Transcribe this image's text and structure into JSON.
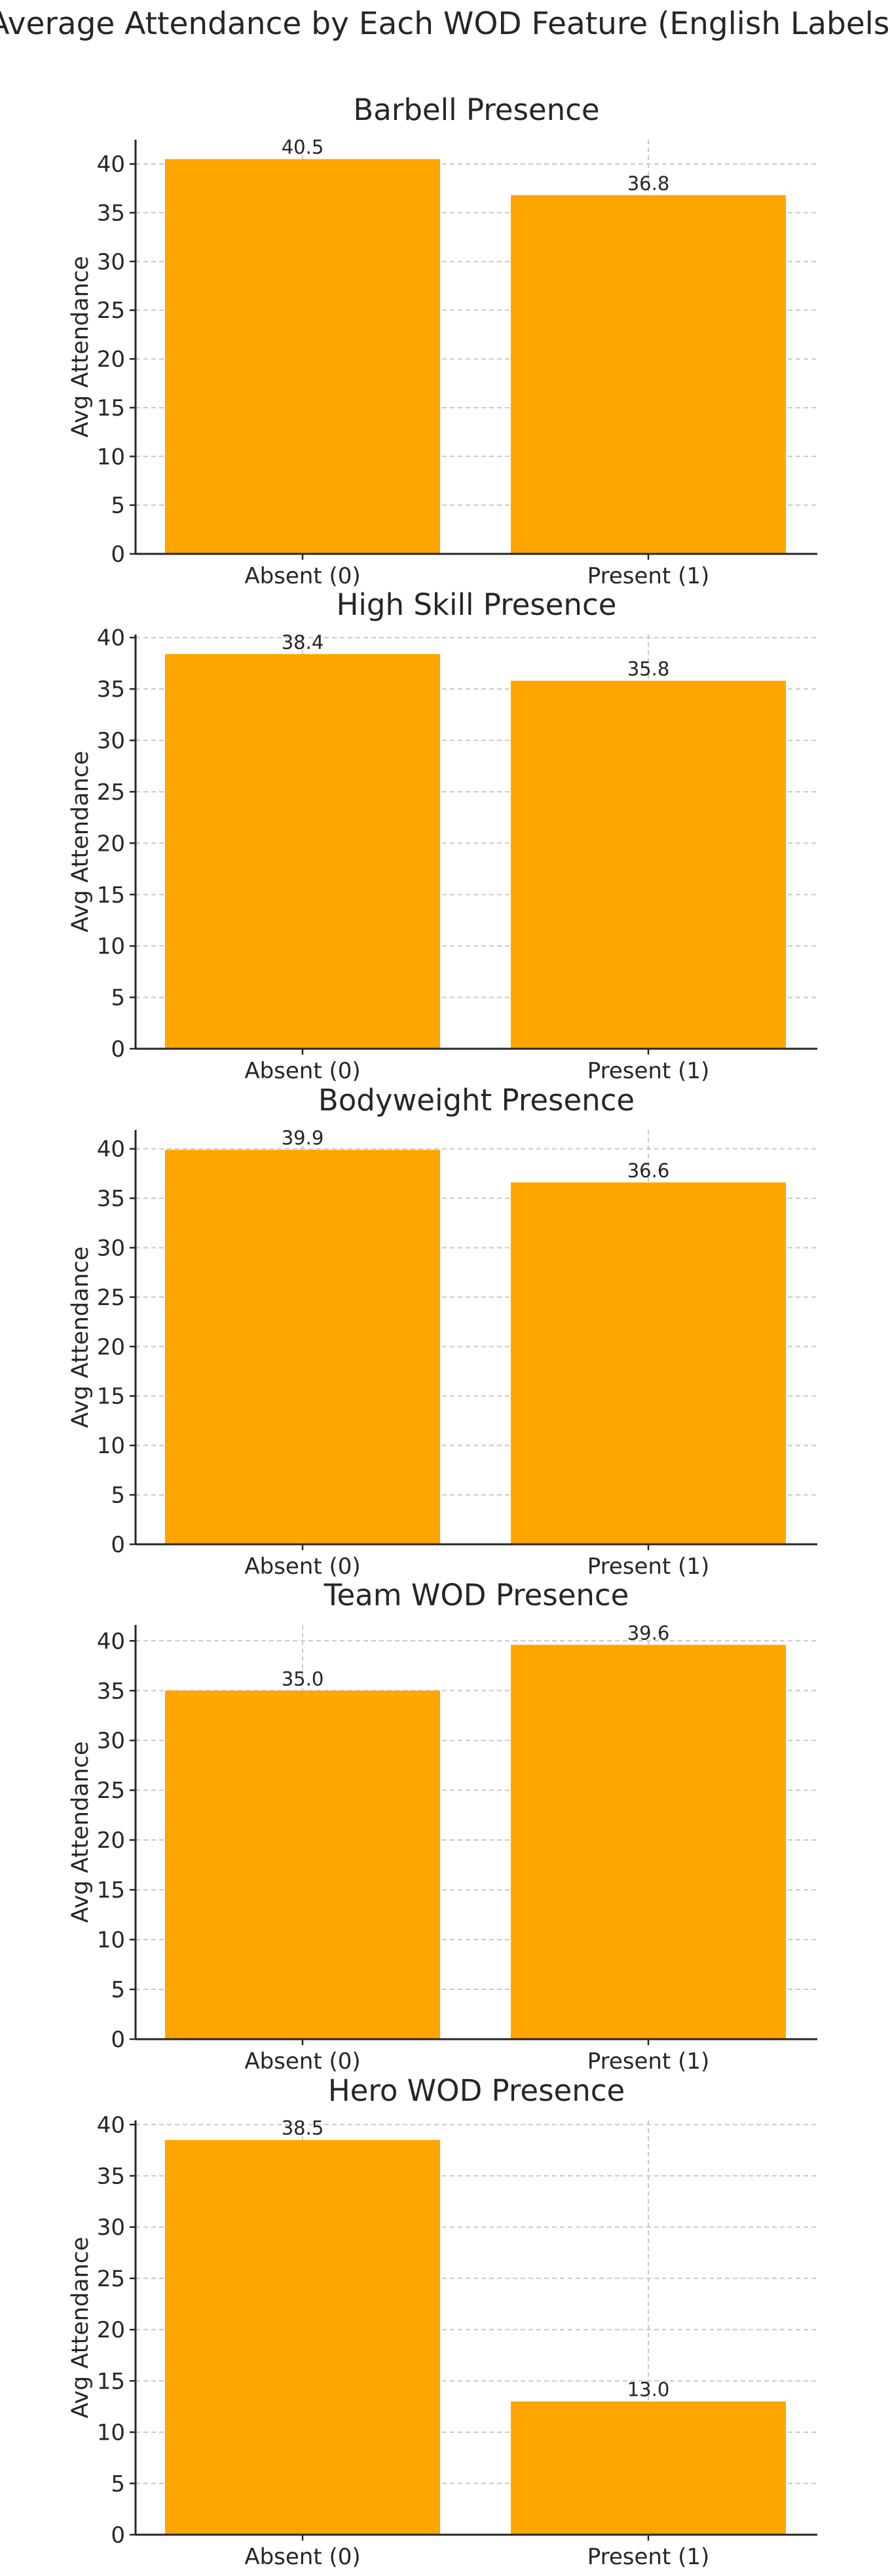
{
  "figure": {
    "title": "Average Attendance by Each WOD Feature (English Labels)"
  },
  "colors": {
    "bar": "#FFA500",
    "text": "#262626",
    "grid": "#c8c8c8"
  },
  "chart_data": [
    {
      "type": "bar",
      "title": "Barbell Presence",
      "xlabel": "",
      "ylabel": "Avg Attendance",
      "categories": [
        "Absent (0)",
        "Present (1)"
      ],
      "values": [
        40.5,
        36.8
      ],
      "value_labels": [
        "40.5",
        "36.8"
      ],
      "ylim": [
        0,
        42.5
      ],
      "yticks": [
        0,
        5,
        10,
        15,
        20,
        25,
        30,
        35,
        40
      ],
      "grid": true
    },
    {
      "type": "bar",
      "title": "High Skill Presence",
      "xlabel": "",
      "ylabel": "Avg Attendance",
      "categories": [
        "Absent (0)",
        "Present (1)"
      ],
      "values": [
        38.4,
        35.8
      ],
      "value_labels": [
        "38.4",
        "35.8"
      ],
      "ylim": [
        0,
        40.3
      ],
      "yticks": [
        0,
        5,
        10,
        15,
        20,
        25,
        30,
        35,
        40
      ],
      "grid": true
    },
    {
      "type": "bar",
      "title": "Bodyweight Presence",
      "xlabel": "",
      "ylabel": "Avg Attendance",
      "categories": [
        "Absent (0)",
        "Present (1)"
      ],
      "values": [
        39.9,
        36.6
      ],
      "value_labels": [
        "39.9",
        "36.6"
      ],
      "ylim": [
        0,
        41.9
      ],
      "yticks": [
        0,
        5,
        10,
        15,
        20,
        25,
        30,
        35,
        40
      ],
      "grid": true
    },
    {
      "type": "bar",
      "title": "Team WOD Presence",
      "xlabel": "",
      "ylabel": "Avg Attendance",
      "categories": [
        "Absent (0)",
        "Present (1)"
      ],
      "values": [
        35.0,
        39.6
      ],
      "value_labels": [
        "35.0",
        "39.6"
      ],
      "ylim": [
        0,
        41.6
      ],
      "yticks": [
        0,
        5,
        10,
        15,
        20,
        25,
        30,
        35,
        40
      ],
      "grid": true
    },
    {
      "type": "bar",
      "title": "Hero WOD Presence",
      "xlabel": "",
      "ylabel": "Avg Attendance",
      "categories": [
        "Absent (0)",
        "Present (1)"
      ],
      "values": [
        38.5,
        13.0
      ],
      "value_labels": [
        "38.5",
        "13.0"
      ],
      "ylim": [
        0,
        40.4
      ],
      "yticks": [
        0,
        5,
        10,
        15,
        20,
        25,
        30,
        35,
        40
      ],
      "grid": true
    }
  ]
}
